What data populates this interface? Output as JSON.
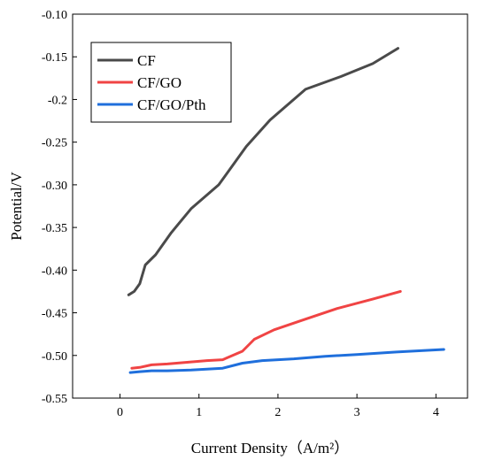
{
  "chart_data": {
    "type": "line",
    "xlabel": "Current Density（A/m²）",
    "ylabel": "Potential/V",
    "xlim": [
      -0.6,
      4.4
    ],
    "ylim": [
      -0.55,
      -0.1
    ],
    "xticks": [
      0,
      1,
      2,
      3,
      4
    ],
    "yticks": [
      -0.1,
      -0.15,
      -0.2,
      -0.25,
      -0.3,
      -0.35,
      -0.4,
      -0.45,
      -0.5,
      -0.55
    ],
    "xtick_labels": [
      "0",
      "1",
      "2",
      "3",
      "4"
    ],
    "ytick_labels": [
      "-0.10",
      "-0.15",
      "-0.2",
      "-0.25",
      "-0.30",
      "-0.35",
      "-0.40",
      "-0.45",
      "-0.50",
      "-0.55"
    ],
    "grid": false,
    "legend_position": "top-left",
    "series": [
      {
        "name": "CF",
        "color": "#4a4a4a",
        "x": [
          0.11,
          0.18,
          0.25,
          0.32,
          0.45,
          0.65,
          0.9,
          1.25,
          1.6,
          1.9,
          2.35,
          2.8,
          3.2,
          3.52
        ],
        "y": [
          -0.429,
          -0.425,
          -0.416,
          -0.394,
          -0.382,
          -0.356,
          -0.328,
          -0.3,
          -0.255,
          -0.224,
          -0.188,
          -0.173,
          -0.158,
          -0.14
        ]
      },
      {
        "name": "CF/GO",
        "color": "#f04444",
        "x": [
          0.15,
          0.25,
          0.4,
          0.6,
          0.85,
          1.1,
          1.3,
          1.55,
          1.7,
          1.95,
          2.3,
          2.75,
          3.2,
          3.55
        ],
        "y": [
          -0.515,
          -0.514,
          -0.511,
          -0.51,
          -0.508,
          -0.506,
          -0.505,
          -0.495,
          -0.481,
          -0.47,
          -0.459,
          -0.445,
          -0.434,
          -0.425
        ]
      },
      {
        "name": "CF/GO/Pth",
        "color": "#1f6fdc",
        "x": [
          0.13,
          0.25,
          0.4,
          0.6,
          0.9,
          1.1,
          1.3,
          1.55,
          1.8,
          2.2,
          2.6,
          3.0,
          3.5,
          4.1
        ],
        "y": [
          -0.52,
          -0.519,
          -0.518,
          -0.518,
          -0.517,
          -0.516,
          -0.515,
          -0.509,
          -0.506,
          -0.504,
          -0.501,
          -0.499,
          -0.496,
          -0.493
        ]
      }
    ]
  }
}
